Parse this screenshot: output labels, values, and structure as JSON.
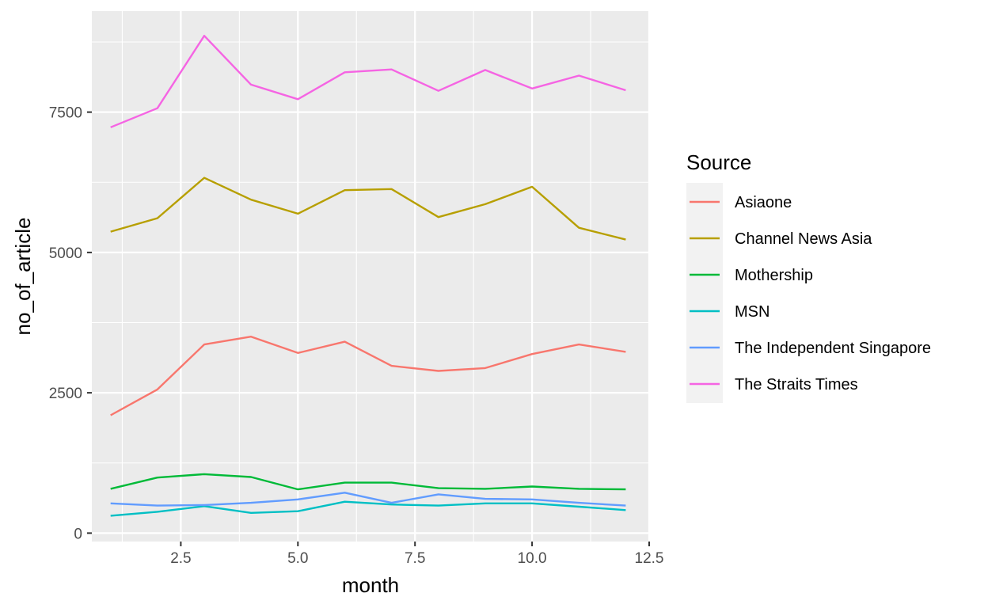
{
  "chart_data": {
    "type": "line",
    "title": "",
    "xlabel": "month",
    "ylabel": "no_of_article",
    "xlim": [
      0.6,
      12.5
    ],
    "ylim": [
      -150,
      9300
    ],
    "x_ticks": [
      2.5,
      5.0,
      7.5,
      10.0,
      12.5
    ],
    "x_tick_labels": [
      "2.5",
      "5.0",
      "7.5",
      "10.0",
      "12.5"
    ],
    "y_ticks": [
      0,
      2500,
      5000,
      7500
    ],
    "y_tick_labels": [
      "0",
      "2500",
      "5000",
      "7500"
    ],
    "grid": true,
    "legend": {
      "title": "Source",
      "position": "right"
    },
    "x": [
      1,
      2,
      3,
      4,
      5,
      6,
      7,
      8,
      9,
      10,
      11,
      12
    ],
    "series": [
      {
        "name": "Asiaone",
        "color": "#F8766D",
        "values": [
          2100,
          2560,
          3360,
          3500,
          3210,
          3410,
          2980,
          2890,
          2940,
          3190,
          3360,
          3230
        ]
      },
      {
        "name": "Channel News Asia",
        "color": "#B79F00",
        "values": [
          5370,
          5610,
          6330,
          5940,
          5690,
          6110,
          6130,
          5630,
          5860,
          6170,
          5440,
          5230
        ]
      },
      {
        "name": "Mothership",
        "color": "#00BA38",
        "values": [
          790,
          990,
          1050,
          1000,
          780,
          900,
          900,
          800,
          790,
          830,
          790,
          780
        ]
      },
      {
        "name": "MSN",
        "color": "#00BFC4",
        "values": [
          310,
          380,
          480,
          360,
          390,
          560,
          510,
          490,
          530,
          530,
          470,
          410
        ]
      },
      {
        "name": "The Independent Singapore",
        "color": "#619CFF",
        "values": [
          530,
          490,
          500,
          540,
          600,
          720,
          540,
          690,
          610,
          600,
          540,
          490
        ]
      },
      {
        "name": "The Straits Times",
        "color": "#F564E3",
        "values": [
          7230,
          7570,
          8860,
          7990,
          7730,
          8210,
          8260,
          7880,
          8250,
          7920,
          8150,
          7890
        ]
      }
    ]
  }
}
